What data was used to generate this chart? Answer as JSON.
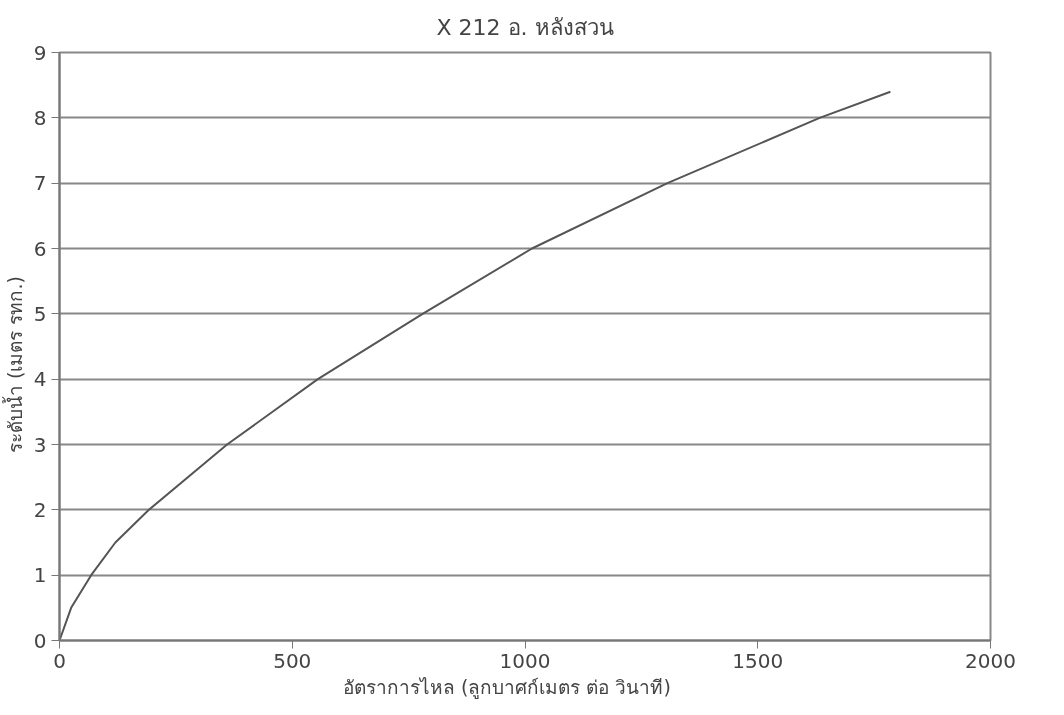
{
  "chart_data": {
    "type": "line",
    "title": "X 212 อ. หลังสวน",
    "xlabel": "อัตราการไหล   (ลูกบาศก์เมตร   ต่อ   วินาที)",
    "ylabel": "ระดับน้ำ    (เมตร    รทก.)",
    "x": [
      0,
      25,
      68,
      120,
      192,
      360,
      555,
      780,
      1015,
      1306,
      1633,
      1785
    ],
    "series": [
      {
        "color": "#555555",
        "values": [
          0,
          0.5,
          1,
          1.5,
          2,
          3,
          4,
          5,
          6,
          7,
          8,
          8.4
        ]
      }
    ],
    "xlim": [
      0,
      2000
    ],
    "xticks": [
      0,
      500,
      1000,
      1500,
      2000
    ],
    "ylim": [
      0,
      9
    ],
    "yticks": [
      0,
      1,
      2,
      3,
      4,
      5,
      6,
      7,
      8,
      9
    ],
    "grid": "y",
    "marker": "none",
    "line_style": "solid"
  }
}
